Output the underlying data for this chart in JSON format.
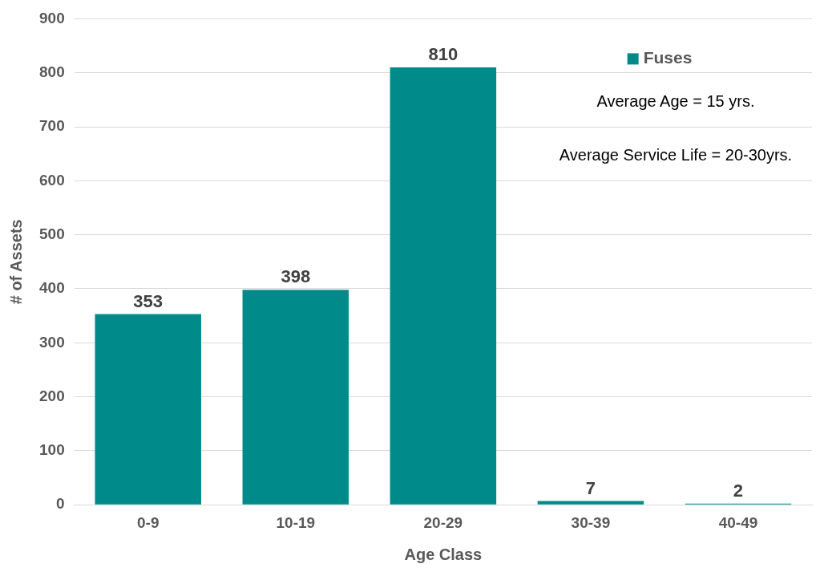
{
  "chart_data": {
    "type": "bar",
    "xlabel": "Age Class",
    "ylabel": "# of Assets",
    "categories": [
      "0-9",
      "10-19",
      "20-29",
      "30-39",
      "40-49"
    ],
    "series": [
      {
        "name": "Fuses",
        "color": "#008b8a",
        "values": [
          353,
          398,
          810,
          7,
          2
        ]
      }
    ],
    "ylim": [
      0,
      900
    ],
    "yticks": [
      0,
      100,
      200,
      300,
      400,
      500,
      600,
      700,
      800,
      900
    ],
    "grid": "y",
    "legend": "top right",
    "data_labels": true,
    "annotations": [
      "Average Age = 15 yrs.",
      "Average Service Life = 20-30yrs."
    ]
  }
}
